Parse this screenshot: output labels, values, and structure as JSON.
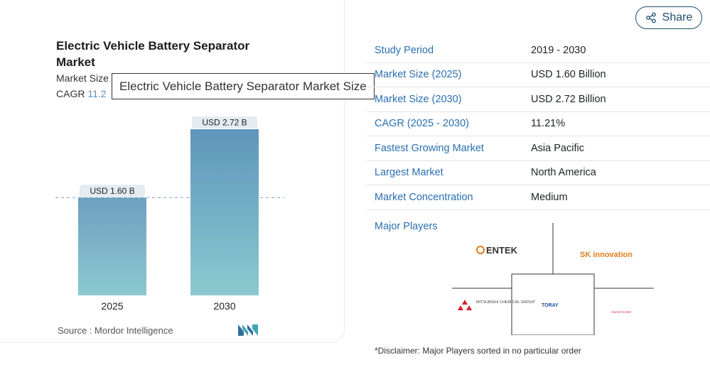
{
  "card": {
    "title": "Electric Vehicle Battery Separator Market",
    "market_size_label": "Market Size",
    "cagr_label": "CAGR",
    "cagr_partial": "11.2",
    "tooltip": "Electric Vehicle Battery Separator Market Size",
    "source": "Source : Mordor Intelligence"
  },
  "chart_data": {
    "type": "bar",
    "categories": [
      "2025",
      "2030"
    ],
    "values": [
      1.6,
      2.72
    ],
    "data_labels": [
      "USD 1.60 B",
      "USD 2.72 B"
    ],
    "ylim": [
      0,
      2.72
    ],
    "colors": [
      "#6e9fc0",
      "#5f95bb"
    ]
  },
  "share": {
    "label": "Share"
  },
  "table": {
    "rows": [
      {
        "key": "Study Period",
        "value": "2019 - 2030"
      },
      {
        "key": "Market Size (2025)",
        "value": "USD 1.60 Billion"
      },
      {
        "key": "Market Size (2030)",
        "value": "USD 2.72 Billion"
      },
      {
        "key": "CAGR (2025 - 2030)",
        "value": "11.21%"
      },
      {
        "key": "Fastest Growing Market",
        "value": "Asia Pacific"
      },
      {
        "key": "Largest Market",
        "value": "North America"
      },
      {
        "key": "Market Concentration",
        "value": "Medium"
      }
    ]
  },
  "major_players": {
    "label": "Major Players",
    "logos": [
      "ENTEK",
      "SK innovation",
      "MITSUBISHI CHEMICAL GROUP",
      "TORAY",
      "ASAHI KASEI"
    ]
  },
  "disclaimer": "*Disclaimer: Major Players sorted in no particular order"
}
